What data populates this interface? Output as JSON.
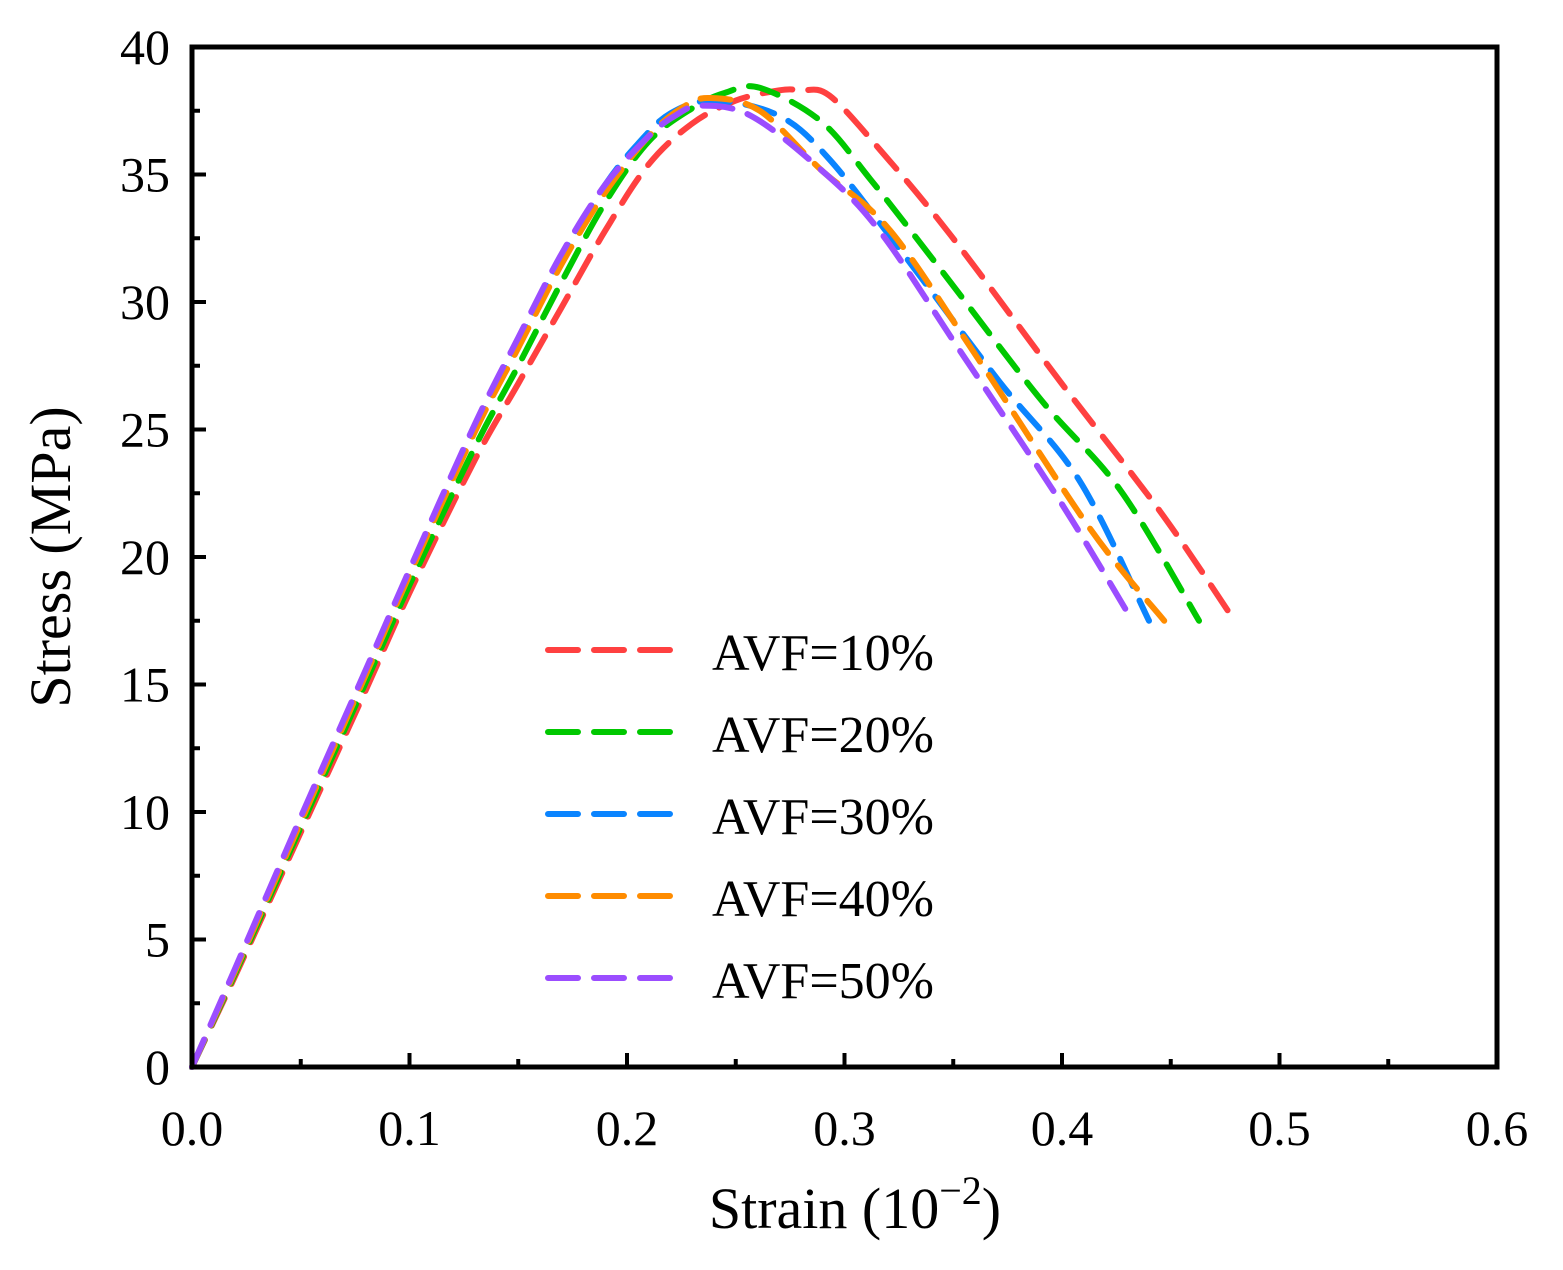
{
  "chart_data": {
    "type": "line",
    "title": "",
    "xlabel": "Strain (10",
    "xlabel_sup": "−2",
    "xlabel_close": ")",
    "ylabel": "Stress (MPa)",
    "xlim": [
      0,
      0.6
    ],
    "ylim": [
      0,
      40
    ],
    "xticks": [
      "0.0",
      "0.1",
      "0.2",
      "0.3",
      "0.4",
      "0.5",
      "0.6"
    ],
    "yticks": [
      "0",
      "5",
      "10",
      "15",
      "20",
      "25",
      "30",
      "35",
      "40"
    ],
    "grid": false,
    "legend_position": "center-left",
    "series": [
      {
        "name": "AVF=10%",
        "color": "#ff4040",
        "x": [
          0,
          0.02,
          0.05,
          0.08,
          0.1,
          0.13,
          0.15,
          0.17,
          0.19,
          0.21,
          0.23,
          0.25,
          0.27,
          0.28,
          0.293,
          0.316,
          0.349,
          0.399,
          0.445,
          0.477
        ],
        "y": [
          0,
          3.6,
          9.2,
          14.8,
          18.6,
          23.8,
          26.8,
          29.8,
          32.8,
          35.4,
          37.0,
          37.9,
          38.3,
          38.3,
          38.1,
          36.0,
          32.6,
          26.9,
          21.8,
          17.8
        ]
      },
      {
        "name": "AVF=20%",
        "color": "#00c800",
        "x": [
          0,
          0.02,
          0.05,
          0.08,
          0.1,
          0.13,
          0.15,
          0.17,
          0.19,
          0.21,
          0.23,
          0.245,
          0.261,
          0.289,
          0.312,
          0.344,
          0.39,
          0.427,
          0.463
        ],
        "y": [
          0,
          3.7,
          9.4,
          15.1,
          18.9,
          24.3,
          27.5,
          30.8,
          33.9,
          36.3,
          37.6,
          38.2,
          38.4,
          37.1,
          34.8,
          31.3,
          26.2,
          22.6,
          17.5
        ]
      },
      {
        "name": "AVF=30%",
        "color": "#0a84ff",
        "x": [
          0,
          0.02,
          0.05,
          0.08,
          0.1,
          0.13,
          0.15,
          0.17,
          0.19,
          0.205,
          0.22,
          0.24,
          0.27,
          0.293,
          0.326,
          0.371,
          0.408,
          0.44
        ],
        "y": [
          0,
          3.8,
          9.6,
          15.4,
          19.3,
          25.0,
          28.4,
          31.8,
          34.6,
          36.2,
          37.4,
          37.9,
          37.3,
          35.6,
          32.0,
          26.9,
          23.0,
          17.5
        ]
      },
      {
        "name": "AVF=40%",
        "color": "#ff8c00",
        "x": [
          0,
          0.02,
          0.05,
          0.08,
          0.1,
          0.13,
          0.15,
          0.17,
          0.19,
          0.21,
          0.225,
          0.238,
          0.261,
          0.289,
          0.321,
          0.362,
          0.413,
          0.447
        ],
        "y": [
          0,
          3.8,
          9.6,
          15.4,
          19.3,
          24.9,
          28.2,
          31.5,
          34.3,
          36.5,
          37.6,
          38.0,
          37.5,
          35.2,
          32.8,
          27.7,
          21.1,
          17.5
        ]
      },
      {
        "name": "AVF=50%",
        "color": "#9b4dff",
        "x": [
          0,
          0.02,
          0.05,
          0.08,
          0.1,
          0.13,
          0.15,
          0.17,
          0.19,
          0.21,
          0.222,
          0.234,
          0.257,
          0.289,
          0.316,
          0.353,
          0.399,
          0.431
        ],
        "y": [
          0,
          3.9,
          9.8,
          15.6,
          19.5,
          25.2,
          28.6,
          31.9,
          34.6,
          36.5,
          37.3,
          37.7,
          37.3,
          35.2,
          32.8,
          28.1,
          22.2,
          17.7
        ]
      }
    ]
  }
}
